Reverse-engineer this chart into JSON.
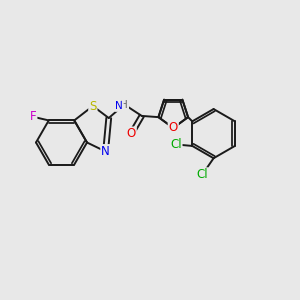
{
  "background_color": "#e8e8e8",
  "bond_color": "#1a1a1a",
  "bond_width": 1.4,
  "atom_colors": {
    "F": "#cc00cc",
    "S": "#b8b800",
    "N": "#0000ee",
    "O": "#ee0000",
    "Cl": "#00aa00",
    "H": "#666666",
    "C": "#1a1a1a"
  },
  "font_size": 8.5,
  "figsize": [
    3.0,
    3.0
  ],
  "dpi": 100
}
